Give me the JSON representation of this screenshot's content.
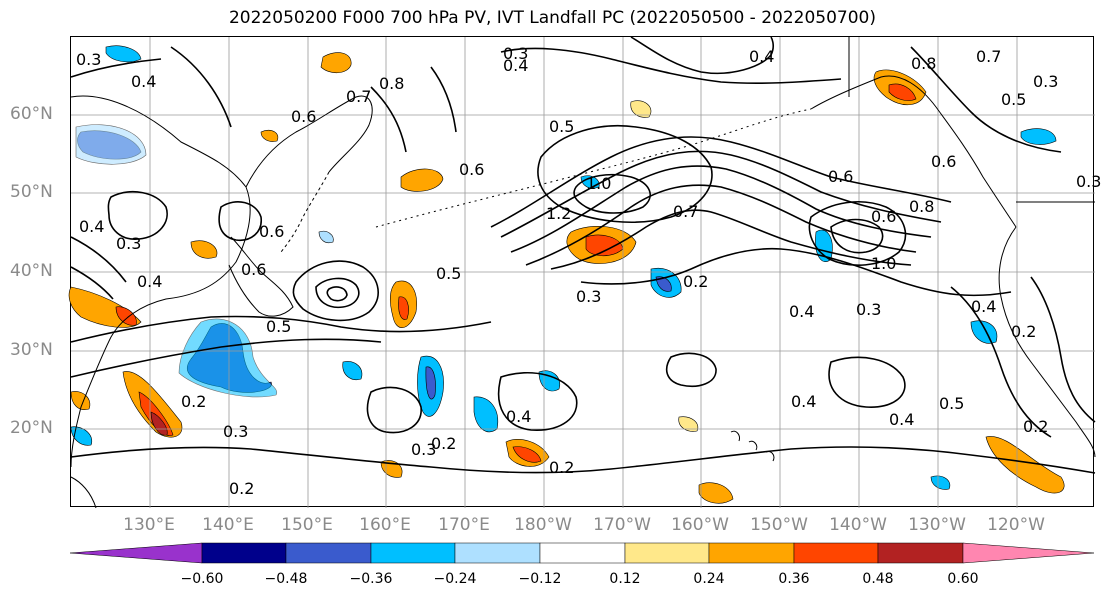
{
  "title": "2022050200 F000 700 hPa PV, IVT Landfall PC (2022050500 - 2022050700)",
  "lat_labels": [
    "60°N",
    "50°N",
    "40°N",
    "30°N",
    "20°N"
  ],
  "lon_labels": [
    "130°E",
    "140°E",
    "150°E",
    "160°E",
    "170°E",
    "180°W",
    "170°W",
    "160°W",
    "150°W",
    "140°W",
    "130°W",
    "120°W"
  ],
  "contour_labels": [
    "0.3",
    "0.4",
    "0.4",
    "0.8",
    "0.6",
    "0.7",
    "0.5",
    "0.6",
    "0.8",
    "0.7",
    "0.5",
    "0.3",
    "0.4",
    "1.0",
    "0.6",
    "1.2",
    "0.6",
    "0.7",
    "0.4",
    "0.3",
    "0.2",
    "0.5",
    "0.6",
    "0.8",
    "0.6",
    "1.0",
    "0.4",
    "0.3",
    "0.4",
    "0.2",
    "0.3",
    "0.5",
    "0.2",
    "0.3",
    "0.4",
    "0.2",
    "0.2",
    "0.3",
    "0.4",
    "0.5",
    "0.2",
    "0.2",
    "0.4",
    "0.3",
    "0.6",
    "0.4",
    "0.3"
  ],
  "colorbar": {
    "ticks": [
      "−0.60",
      "−0.48",
      "−0.36",
      "−0.24",
      "−0.12",
      "0.12",
      "0.24",
      "0.36",
      "0.48",
      "0.60"
    ],
    "colors": [
      "#9932cc",
      "#00008b",
      "#3a5bcd",
      "#00bfff",
      "#aee0ff",
      "#ffffff",
      "#ffe88a",
      "#ffa500",
      "#ff4500",
      "#b22222",
      "#ff86b0"
    ]
  },
  "shading_colors": {
    "pos_weak": "#ffa500",
    "pos_mid": "#ff4500",
    "pos_strong": "#b22222",
    "pos_light": "#ffe88a",
    "neg_weak": "#00bfff",
    "neg_mid": "#3a5bcd",
    "neg_light": "#aee0ff"
  }
}
